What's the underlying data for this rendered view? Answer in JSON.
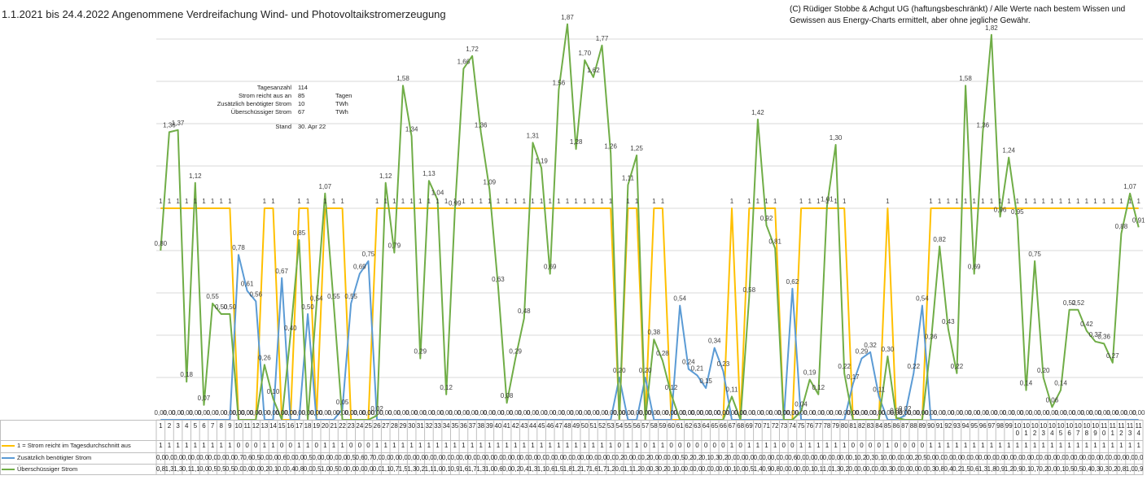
{
  "chart_data": {
    "type": "line",
    "title": "1.1.2021 bis 24.4.2022 Angenommene Verdreifachung Wind- und Photovoltaikstromerzeugung",
    "copyright": "(C) Rüdiger Stobbe & Achgut UG (haftungsbeschränkt) / Alle Werte nach bestem Wissen und Gewissen aus Energy-Charts ermittelt, aber ohne jegliche Gewähr.",
    "info_box": [
      [
        "Tagesanzahl",
        "114",
        ""
      ],
      [
        "Strom reicht aus an",
        "85",
        "Tagen"
      ],
      [
        "Zusätzlich benötigter Strom",
        "10",
        "TWh"
      ],
      [
        "Überschüssiger Strom",
        "67",
        "TWh"
      ],
      [
        "Stand",
        "30. Apr 22",
        ""
      ]
    ],
    "categories": [
      "1",
      "2",
      "3",
      "4",
      "5",
      "6",
      "7",
      "8",
      "9",
      "10",
      "11",
      "12",
      "13",
      "14",
      "15",
      "16",
      "17",
      "18",
      "19",
      "20",
      "21",
      "22",
      "23",
      "24",
      "25",
      "26",
      "27",
      "28",
      "29",
      "30",
      "31",
      "32",
      "33",
      "34",
      "35",
      "36",
      "37",
      "38",
      "39",
      "40",
      "41",
      "42",
      "43",
      "44",
      "45",
      "46",
      "47",
      "48",
      "49",
      "50",
      "51",
      "52",
      "53",
      "54",
      "55",
      "56",
      "57",
      "58",
      "59",
      "60",
      "61",
      "62",
      "63",
      "64",
      "65",
      "66",
      "67",
      "68",
      "69",
      "70",
      "71",
      "72",
      "73",
      "74",
      "75",
      "76",
      "77",
      "78",
      "79",
      "80",
      "81",
      "82",
      "83",
      "84",
      "85",
      "86",
      "87",
      "88",
      "89",
      "90",
      "91",
      "92",
      "93",
      "94",
      "95",
      "96",
      "97",
      "98",
      "99",
      "100",
      "101",
      "102",
      "103",
      "104",
      "105",
      "106",
      "107",
      "108",
      "109",
      "110",
      "111",
      "112",
      "113",
      "114"
    ],
    "ylim": [
      0,
      1.9
    ],
    "yticks": [
      0,
      0.2,
      0.4,
      0.6,
      0.8,
      1,
      1.2,
      1.4,
      1.6,
      1.8
    ],
    "grid": true,
    "series": [
      {
        "name": "1 = Strom reicht im Tagesdurchschnitt aus",
        "color": "#FFC000",
        "values": [
          1,
          1,
          1,
          1,
          1,
          1,
          1,
          1,
          1,
          0,
          0,
          0,
          1,
          1,
          0,
          0,
          1,
          1,
          0,
          1,
          1,
          1,
          0,
          0,
          0,
          1,
          1,
          1,
          1,
          1,
          1,
          1,
          1,
          1,
          1,
          1,
          1,
          1,
          1,
          1,
          1,
          1,
          1,
          1,
          1,
          1,
          1,
          1,
          1,
          1,
          1,
          1,
          1,
          0,
          1,
          1,
          0,
          1,
          1,
          0,
          0,
          0,
          0,
          0,
          0,
          0,
          1,
          0,
          1,
          1,
          1,
          1,
          0,
          0,
          1,
          1,
          1,
          1,
          1,
          1,
          0,
          0,
          0,
          0,
          1,
          0,
          0,
          0,
          0,
          1,
          1,
          1,
          1,
          1,
          1,
          1,
          1,
          1,
          1,
          1,
          1,
          1,
          1,
          1,
          1,
          1,
          1,
          1,
          1,
          1,
          1,
          1,
          1,
          1
        ],
        "value_labels": [
          "1",
          "1",
          "1",
          "1",
          "1",
          "1",
          "1",
          "1",
          "1",
          "0,00",
          "0,00",
          "0,00",
          "1",
          "1",
          "0,00",
          "0,00",
          "1",
          "1",
          "0,00",
          "1",
          "1",
          "1",
          "0,00",
          "0,00",
          "0,00",
          "1",
          "1",
          "1",
          "1",
          "1",
          "1",
          "1",
          "1",
          "1",
          "1",
          "1",
          "1",
          "1",
          "1",
          "1",
          "1",
          "1",
          "1",
          "1",
          "1",
          "1",
          "1",
          "1",
          "1",
          "1",
          "1",
          "1",
          "1",
          "0,00",
          "1",
          "1",
          "0,00",
          "1",
          "1",
          "0,00",
          "0,00",
          "0,00",
          "0,00",
          "0,00",
          "0,00",
          "0,00",
          "1",
          "0,00",
          "1",
          "1",
          "1",
          "1",
          "0,00",
          "0,00",
          "1",
          "1",
          "1",
          "1",
          "1",
          "1",
          "0,00",
          "0,00",
          "0,00",
          "0,00",
          "1",
          "0,00",
          "0,00",
          "0,00",
          "0,00",
          "1",
          "1",
          "1",
          "1",
          "1",
          "1",
          "1",
          "1",
          "1",
          "1",
          "1",
          "1",
          "1",
          "1",
          "1",
          "1",
          "1",
          "1",
          "1",
          "1",
          "1",
          "1",
          "1",
          "1",
          "1"
        ]
      },
      {
        "name": "Zusätzlich benötigter Strom",
        "color": "#5B9BD5",
        "values": [
          0,
          0,
          0,
          0,
          0,
          0,
          0,
          0,
          0,
          0.78,
          0.61,
          0.56,
          0,
          0,
          0.67,
          0,
          0,
          0.5,
          0,
          0,
          0,
          0.05,
          0.55,
          0.69,
          0.75,
          0,
          0,
          0,
          0,
          0,
          0,
          0,
          0,
          0,
          0,
          0,
          0,
          0,
          0,
          0,
          0,
          0,
          0,
          0,
          0,
          0,
          0,
          0,
          0,
          0,
          0,
          0,
          0,
          0.2,
          0,
          0,
          0.2,
          0,
          0,
          0,
          0.54,
          0.24,
          0.21,
          0.15,
          0.34,
          0.23,
          0,
          0,
          0,
          0,
          0,
          0,
          0,
          0.62,
          0,
          0,
          0,
          0,
          0,
          0,
          0.17,
          0.29,
          0.32,
          0.11,
          0,
          0,
          0.02,
          0.22,
          0.54,
          0,
          0,
          0,
          0,
          0,
          0,
          0,
          0,
          0,
          0,
          0,
          0,
          0,
          0,
          0,
          0,
          0,
          0,
          0,
          0,
          0,
          0,
          0,
          0,
          0
        ],
        "value_labels": [
          "0,00",
          "0,00",
          "0,00",
          "0,00",
          "0,00",
          "0,00",
          "0,00",
          "0,00",
          "0,00",
          "0,78",
          "0,61",
          "0,56",
          "0,00",
          "0,00",
          "0,67",
          "0,00",
          "0,00",
          "0,50",
          "0,00",
          "0,00",
          "0,00",
          "0,05",
          "0,55",
          "0,69",
          "0,75",
          "0,00",
          "0,00",
          "0,00",
          "0,00",
          "0,00",
          "0,00",
          "0,00",
          "0,00",
          "0,00",
          "0,00",
          "0,00",
          "0,00",
          "0,00",
          "0,00",
          "0,00",
          "0,00",
          "0,00",
          "0,00",
          "0,00",
          "0,00",
          "0,00",
          "0,00",
          "0,00",
          "0,00",
          "0,00",
          "0,00",
          "0,00",
          "0,00",
          "0,20",
          "0,00",
          "0,00",
          "0,20",
          "0,00",
          "0,00",
          "0,00",
          "0,54",
          "0,24",
          "0,21",
          "0,15",
          "0,34",
          "0,23",
          "0,00",
          "0,00",
          "0,00",
          "0,00",
          "0,00",
          "0,00",
          "0,00",
          "0,62",
          "0,00",
          "0,00",
          "0,00",
          "0,00",
          "0,00",
          "0,00",
          "0,17",
          "0,29",
          "0,32",
          "0,11",
          "0,00",
          "0,00",
          "0,02",
          "0,22",
          "0,54",
          "0,00",
          "0,00",
          "0,00",
          "0,00",
          "0,00",
          "0,00",
          "0,00",
          "0,00",
          "0,00",
          "0,00",
          "0,00",
          "0,00",
          "0,00",
          "0,00",
          "0,00",
          "0,00",
          "0,00",
          "0,00",
          "0,00",
          "0,00",
          "0,00",
          "0,00",
          "0,00",
          "0,00",
          "0,00"
        ]
      },
      {
        "name": "Überschüssiger Strom",
        "color": "#70AD47",
        "values": [
          0.8,
          1.36,
          1.37,
          0.18,
          1.12,
          0.07,
          0.55,
          0.5,
          0.5,
          0,
          0,
          0,
          0.26,
          0.1,
          0,
          0.4,
          0.85,
          0,
          0.54,
          1.07,
          0.55,
          0,
          0,
          0,
          0,
          0.02,
          1.12,
          0.79,
          1.58,
          1.34,
          0.29,
          1.13,
          1.04,
          0.12,
          0.99,
          1.66,
          1.72,
          1.36,
          1.09,
          0.63,
          0.08,
          0.29,
          0.48,
          1.31,
          1.19,
          0.69,
          1.56,
          1.87,
          1.28,
          1.7,
          1.62,
          1.77,
          1.26,
          0,
          1.11,
          1.25,
          0,
          0.38,
          0.28,
          0.12,
          0,
          0,
          0,
          0,
          0,
          0,
          0.11,
          0,
          0.58,
          1.42,
          0.92,
          0.81,
          0,
          0,
          0.04,
          0.19,
          0.12,
          1.01,
          1.3,
          0.22,
          0,
          0,
          0,
          0,
          0.3,
          0.01,
          0,
          0,
          0,
          0.36,
          0.82,
          0.43,
          0.22,
          1.58,
          0.69,
          1.36,
          1.82,
          0.96,
          1.24,
          0.95,
          0.14,
          0.75,
          0.2,
          0.06,
          0.14,
          0.52,
          0.52,
          0.42,
          0.37,
          0.36,
          0.27,
          0.88,
          1.07,
          0.91
        ],
        "value_labels": [
          "0,80",
          "1,36",
          "1,37",
          "0,18",
          "1,12",
          "0,07",
          "0,55",
          "0,50",
          "0,50",
          "0,00",
          "0,00",
          "0,00",
          "0,26",
          "0,10",
          "0,00",
          "0,40",
          "0,85",
          "0,00",
          "0,54",
          "1,07",
          "0,55",
          "0,00",
          "0,00",
          "0,00",
          "0,00",
          "0,02",
          "1,12",
          "0,79",
          "1,58",
          "1,34",
          "0,29",
          "1,13",
          "1,04",
          "0,12",
          "0,99",
          "1,66",
          "1,72",
          "1,36",
          "1,09",
          "0,63",
          "0,08",
          "0,29",
          "0,48",
          "1,31",
          "1,19",
          "0,69",
          "1,56",
          "1,87",
          "1,28",
          "1,70",
          "1,62",
          "1,77",
          "1,26",
          "0,00",
          "1,11",
          "1,25",
          "0,00",
          "0,38",
          "0,28",
          "0,12",
          "0,00",
          "0,00",
          "0,00",
          "0,00",
          "0,00",
          "0,00",
          "0,11",
          "0,00",
          "0,58",
          "1,42",
          "0,92",
          "0,81",
          "0,00",
          "0,00",
          "0,04",
          "0,19",
          "0,12",
          "1,01",
          "1,30",
          "0,22",
          "0,00",
          "0,00",
          "0,00",
          "0,00",
          "0,30",
          "0,01",
          "0,00",
          "0,00",
          "0,00",
          "0,36",
          "0,82",
          "0,43",
          "0,22",
          "1,58",
          "0,69",
          "1,36",
          "1,82",
          "0,96",
          "1,24",
          "0,95",
          "0,14",
          "0,75",
          "0,20",
          "0,06",
          "0,14",
          "0,52",
          "0,52",
          "0,42",
          "0,37",
          "0,36",
          "0,27",
          "0,88",
          "1,07",
          "0,91"
        ]
      }
    ]
  }
}
